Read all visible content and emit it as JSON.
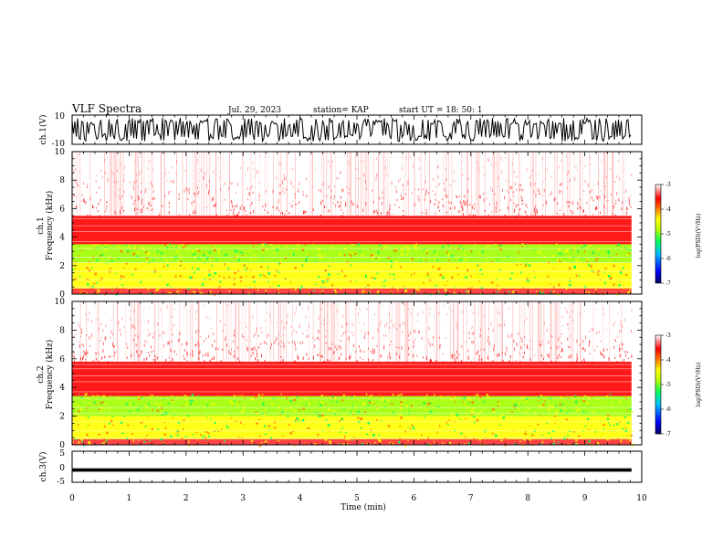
{
  "header": {
    "title": "VLF Spectra",
    "date": "Jul. 29, 2023",
    "station": "station= KAP",
    "start_ut": "start UT =  18: 50: 1"
  },
  "chart_data": [
    {
      "type": "line",
      "name": "ch1-waveform",
      "ylabel": "ch.1(V)",
      "ylim": [
        -10,
        10
      ],
      "ytick_labels": [
        "10",
        "-10"
      ],
      "note": "dense oscillating waveform"
    },
    {
      "type": "heatmap",
      "name": "ch1-spectrogram",
      "ylabel": "ch.1\nFrequency (kHz)",
      "ylabel_line1": "ch.1",
      "ylabel_line2": "Frequency (kHz)",
      "ylim": [
        0,
        10
      ],
      "yticks": [
        0,
        2,
        4,
        6,
        8,
        10
      ],
      "colorbar": {
        "label": "log(PSD)(V²/Hz)",
        "range": [
          -7,
          -3
        ],
        "ticks": [
          "-3",
          "-4",
          "-5",
          "-6",
          "-7"
        ],
        "colors": [
          "#000080",
          "#0000ff",
          "#00ffff",
          "#00ff00",
          "#ffff00",
          "#ff0000",
          "#ffffff"
        ]
      },
      "bands_khz": [
        {
          "from": 0.0,
          "to": 0.4,
          "level": -3.6
        },
        {
          "from": 0.4,
          "to": 2.2,
          "level": -4.6
        },
        {
          "from": 2.2,
          "to": 3.5,
          "level": -5.0
        },
        {
          "from": 3.5,
          "to": 5.5,
          "level": -3.9
        },
        {
          "from": 5.5,
          "to": 10.0,
          "level": -3.2
        }
      ]
    },
    {
      "type": "heatmap",
      "name": "ch2-spectrogram",
      "ylabel": "ch.2\nFrequency (kHz)",
      "ylabel_line1": "ch.2",
      "ylabel_line2": "Frequency (kHz)",
      "ylim": [
        0,
        10
      ],
      "yticks": [
        0,
        2,
        4,
        6,
        8,
        10
      ],
      "colorbar": {
        "label": "log(PSD)(V²/Hz)",
        "range": [
          -7,
          -3
        ],
        "ticks": [
          "-3",
          "-4",
          "-5",
          "-6",
          "-7"
        ],
        "colors": [
          "#000080",
          "#0000ff",
          "#00ffff",
          "#00ff00",
          "#ffff00",
          "#ff0000",
          "#ffffff"
        ]
      },
      "bands_khz": [
        {
          "from": 0.0,
          "to": 0.4,
          "level": -3.7
        },
        {
          "from": 0.4,
          "to": 2.0,
          "level": -4.8
        },
        {
          "from": 2.0,
          "to": 3.4,
          "level": -5.2
        },
        {
          "from": 3.4,
          "to": 5.8,
          "level": -3.9
        },
        {
          "from": 5.8,
          "to": 10.0,
          "level": -3.2
        }
      ]
    },
    {
      "type": "line",
      "name": "ch3-waveform",
      "ylabel": "ch.3(V)",
      "ylim": [
        -5,
        5
      ],
      "ytick_labels": [
        "5",
        "0",
        "-5"
      ],
      "note": "flat trace near -1 V"
    }
  ],
  "xaxis": {
    "label": "Time (min)",
    "xlim": [
      0,
      10
    ],
    "ticks": [
      0,
      1,
      2,
      3,
      4,
      5,
      6,
      7,
      8,
      9,
      10
    ],
    "data_end_min": 9.82
  },
  "colors": {
    "axis": "#000000",
    "white": "#ffffff",
    "red": "#ff0000",
    "yellow": "#ffff00",
    "green": "#00ff00"
  }
}
